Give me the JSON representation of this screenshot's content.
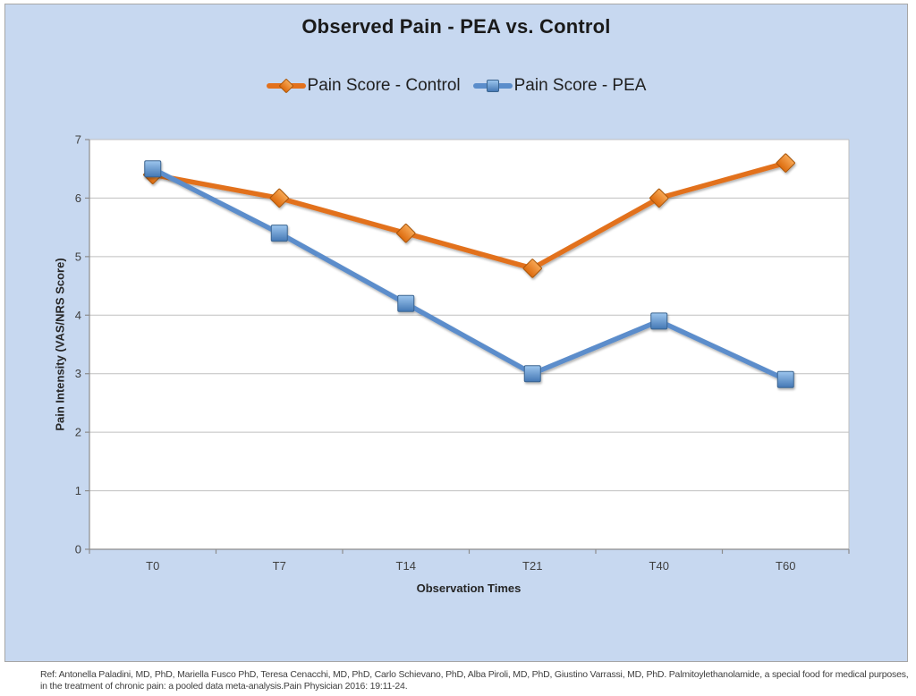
{
  "chart": {
    "background": "#C7D8F0",
    "border": "#A6A6A6",
    "plot_bg": "#FFFFFF",
    "grid_color": "#BFBFBF",
    "axis_color": "#8C8C8C",
    "tick_label_color": "#3F3F3F",
    "title_color": "#1A1A1A"
  },
  "chart_data": {
    "type": "line",
    "title": "Observed Pain - PEA vs. Control",
    "xlabel": "Observation Times",
    "ylabel": "Pain Intensity (VAS/NRS Score)",
    "categories": [
      "T0",
      "T7",
      "T14",
      "T21",
      "T40",
      "T60"
    ],
    "series": [
      {
        "name": "Pain Score - Control",
        "marker": "diamond",
        "color": "#E2711D",
        "marker_fill_light": "#F7A855",
        "marker_fill_dark": "#DC690C",
        "marker_stroke": "#A85608",
        "values": [
          6.4,
          6.0,
          5.4,
          4.8,
          6.0,
          6.6
        ]
      },
      {
        "name": "Pain Score - PEA",
        "marker": "square",
        "color": "#5B8DCB",
        "marker_fill_light": "#9DC6EE",
        "marker_fill_dark": "#4377B4",
        "marker_stroke": "#3A648F",
        "values": [
          6.5,
          5.4,
          4.2,
          3.0,
          3.9,
          2.9
        ]
      }
    ],
    "ylim": [
      0,
      7
    ],
    "yticks": [
      0,
      1,
      2,
      3,
      4,
      5,
      6,
      7
    ],
    "grid": true,
    "legend_position": "top"
  },
  "footnote": {
    "line1": "Ref: Antonella Paladini, MD, PhD, Mariella Fusco PhD, Teresa Cenacchi, MD, PhD, Carlo Schievano, PhD, Alba Piroli, MD, PhD, Giustino Varrassi, MD, PhD. Palmitoylethanolamide, a special food for medical purposes,",
    "line2": "in the treatment of chronic pain: a pooled data meta-analysis.Pain Physician 2016: 19:11-24."
  }
}
